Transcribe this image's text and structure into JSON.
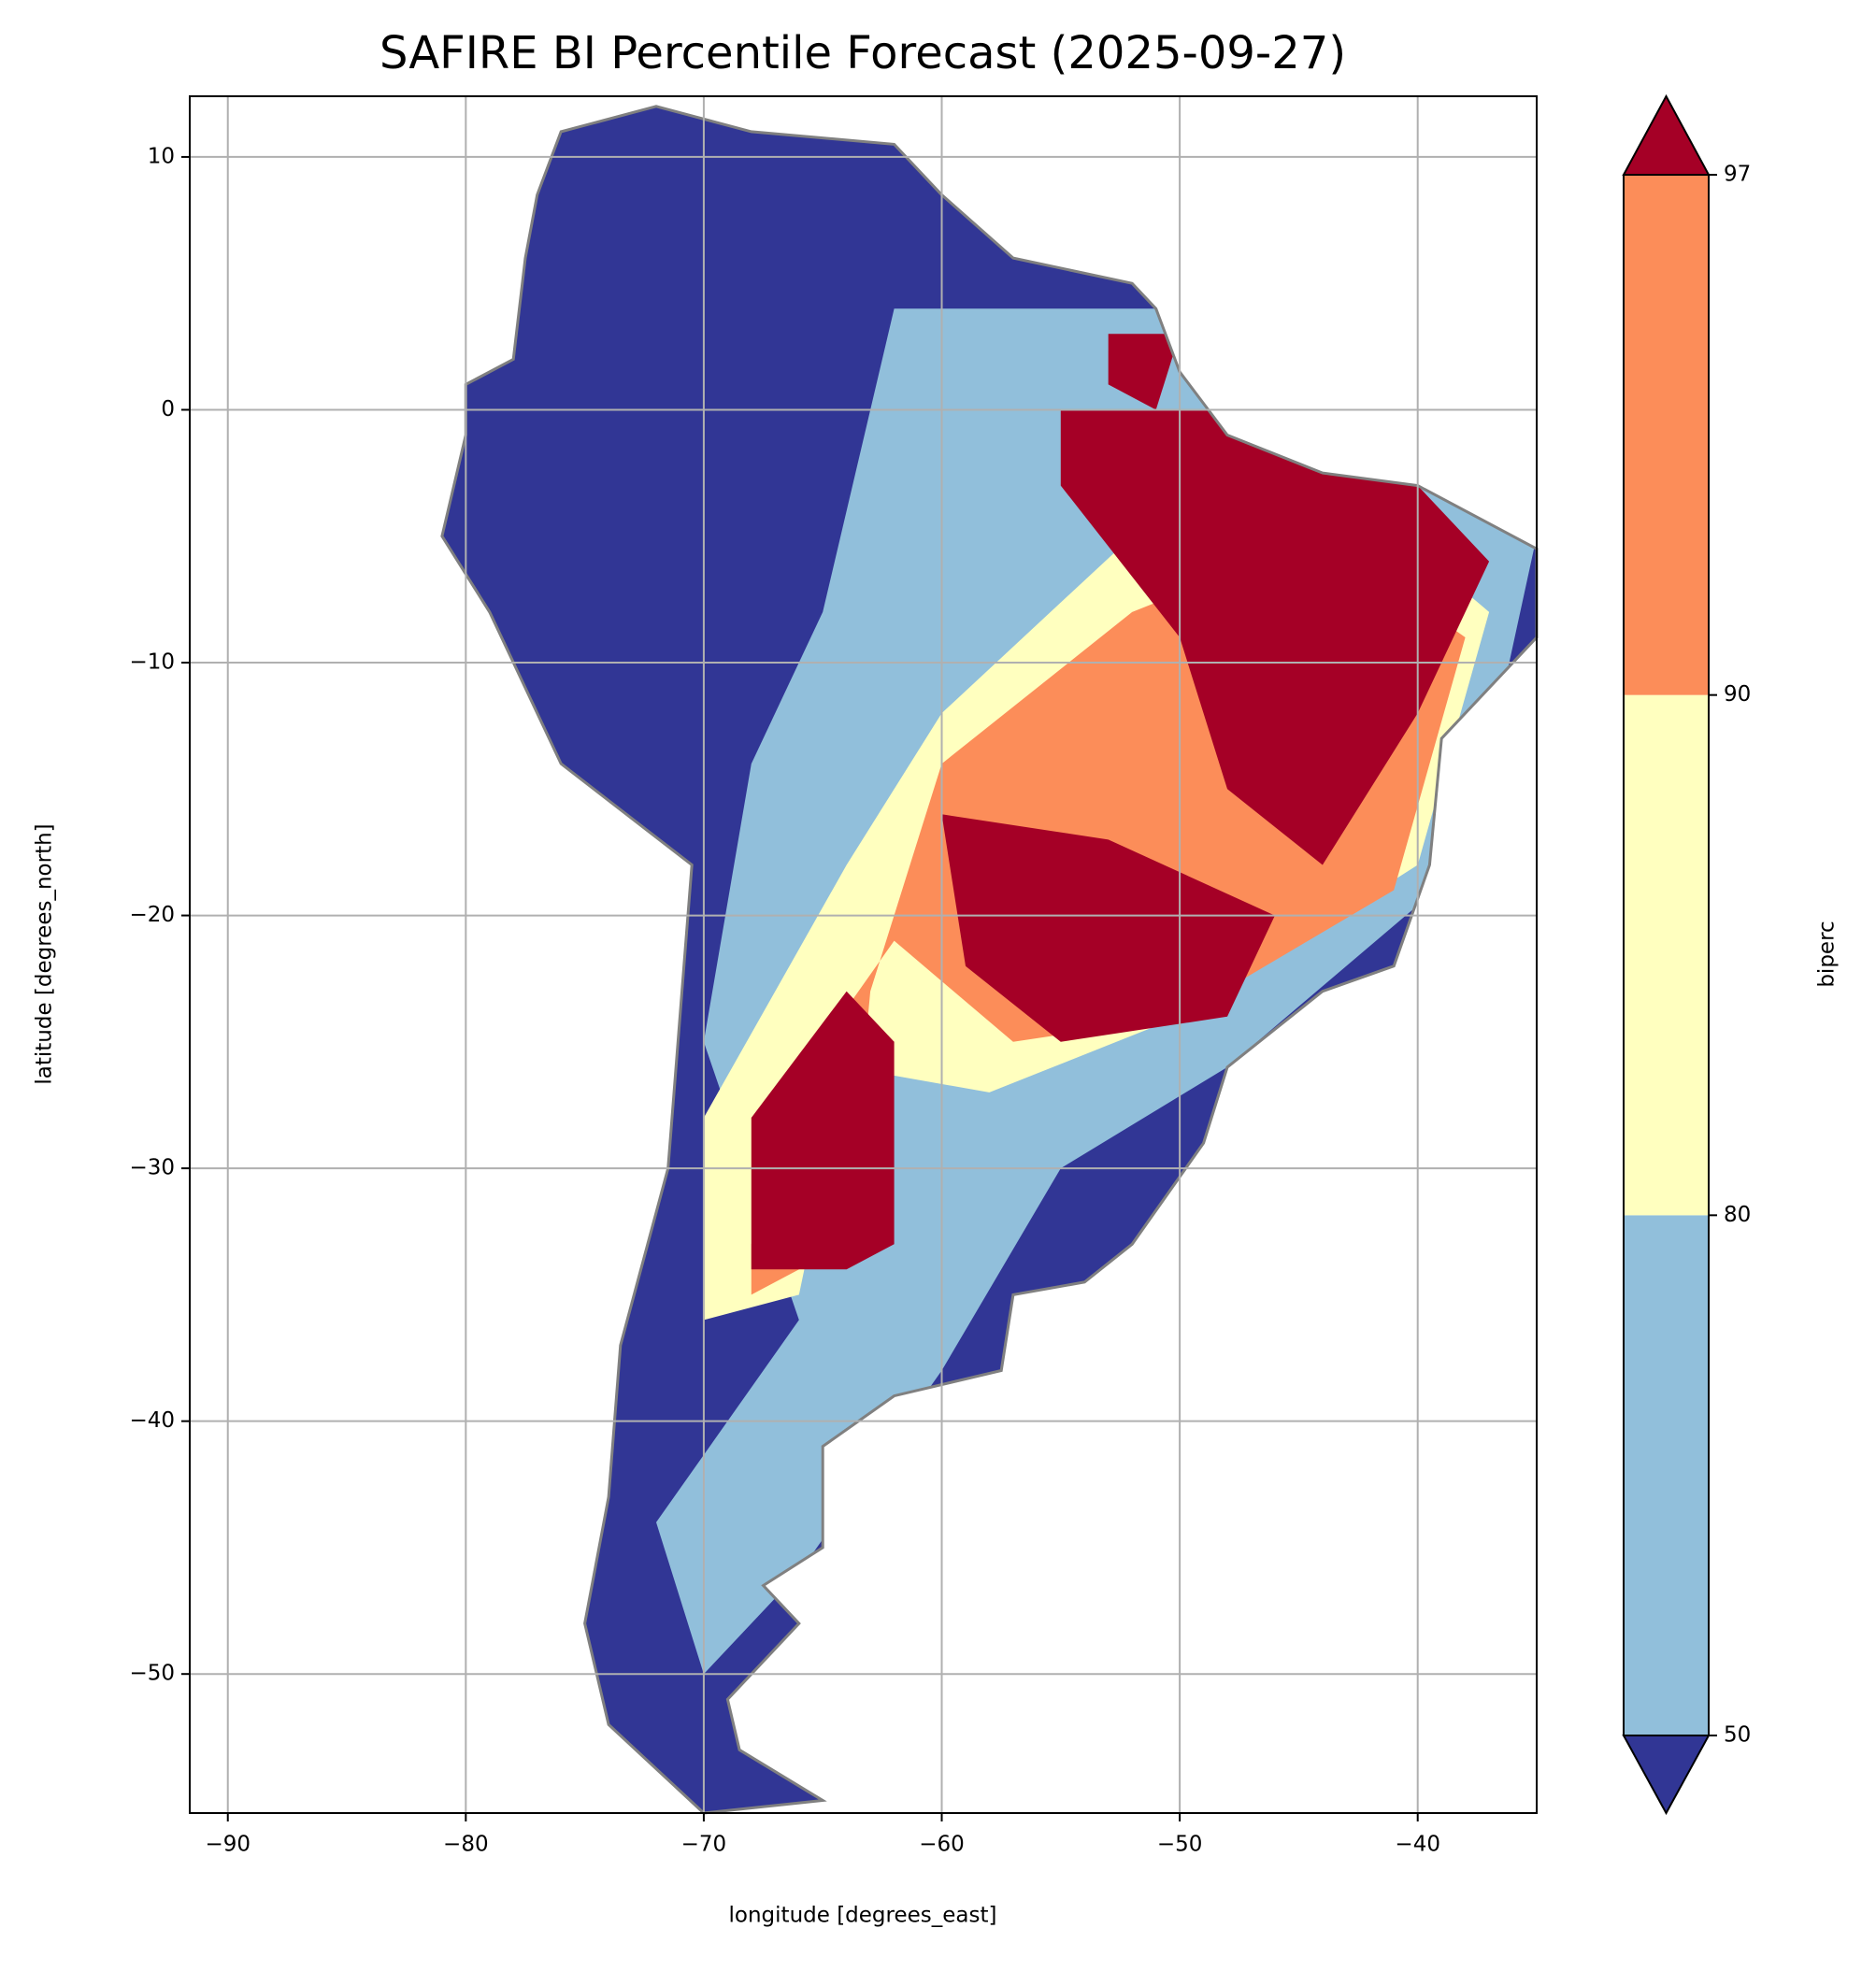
{
  "chart_data": {
    "type": "map",
    "title": "SAFIRE BI Percentile Forecast (2025-09-27)",
    "xlabel": "longitude [degrees_east]",
    "ylabel": "latitude [degrees_north]",
    "xlim": [
      -91.6,
      -35.0
    ],
    "ylim": [
      -55.5,
      12.4
    ],
    "xticks": [
      {
        "value": -90,
        "label": "−90"
      },
      {
        "value": -80,
        "label": "−80"
      },
      {
        "value": -70,
        "label": "−70"
      },
      {
        "value": -60,
        "label": "−60"
      },
      {
        "value": -50,
        "label": "−50"
      },
      {
        "value": -40,
        "label": "−40"
      }
    ],
    "yticks": [
      10,
      0,
      {
        "value": -10,
        "label": "−10"
      },
      {
        "value": -20,
        "label": "−20"
      },
      {
        "value": -30,
        "label": "−30"
      },
      {
        "value": -40,
        "label": "−40"
      },
      {
        "value": -50,
        "label": "−50"
      }
    ],
    "grid": true,
    "colorbar": {
      "label": "biperc",
      "ticks": [
        50,
        80,
        90,
        97
      ],
      "colors": [
        "#313695",
        "#91bfdb",
        "#ffffbf",
        "#fc8d59",
        "#a50026"
      ]
    }
  }
}
